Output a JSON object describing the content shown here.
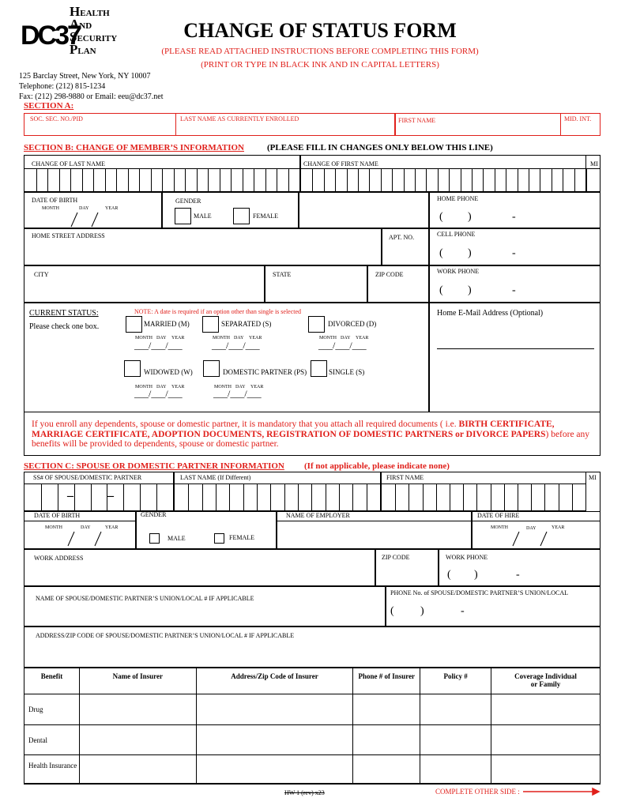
{
  "header": {
    "logo": {
      "lines": [
        "HEALTH",
        "AND",
        "SECURITY",
        "PLAN"
      ],
      "mark": "DC37"
    },
    "address": [
      "125 Barclay Street, New York, NY 10007",
      "Telephone: (212) 815-1234",
      "Fax: (212) 298-9880 or Email: eeu@dc37.net"
    ],
    "title": "CHANGE OF STATUS FORM",
    "instructions": [
      "(PLEASE READ ATTACHED INSTRUCTIONS BEFORE COMPLETING THIS FORM)",
      "(PRINT OR TYPE IN BLACK INK AND IN CAPITAL LETTERS)"
    ]
  },
  "common": {
    "month": "MONTH",
    "day": "DAY",
    "year": "YEAR",
    "phone_open": "(",
    "phone_close": ")",
    "phone_dash": "-",
    "date_blank": "___/___/___",
    "ss_dash": "–"
  },
  "section_a": {
    "title": "SECTION A:",
    "fields": [
      "SOC. SEC. NO./PID",
      "LAST NAME AS CURRENTLY ENROLLED",
      "FIRST NAME",
      "MID. INT."
    ]
  },
  "section_b": {
    "title": "SECTION B: CHANGE OF MEMBER’S INFORMATION",
    "note": "(PLEASE FILL IN CHANGES ONLY BELOW THIS LINE)",
    "last_name": "CHANGE OF LAST NAME",
    "first_name": "CHANGE OF FIRST NAME",
    "mi": "MI",
    "date_of_birth": "DATE OF BIRTH",
    "gender": "GENDER",
    "male": "MALE",
    "female": "FEMALE",
    "home_phone": "HOME PHONE",
    "street": "HOME STREET ADDRESS",
    "apt": "APT. NO.",
    "cell_phone": "CELL PHONE",
    "city": "CITY",
    "state": "STATE",
    "zip": "ZIP CODE",
    "work_phone": "WORK PHONE",
    "current_status": "CURRENT STATUS:",
    "check_one": "Please check one box.",
    "status_note": "NOTE: A date is required if an option other than single is selected",
    "options": [
      "MARRIED (M)",
      "SEPARATED (S)",
      "DIVORCED (D)",
      "WIDOWED (W)",
      "DOMESTIC PARTNER (PS)",
      "SINGLE (S)"
    ],
    "email": "Home E-Mail Address (Optional)",
    "notice": {
      "before": "If you enroll any dependents, spouse or domestic partner, it is mandatory that you attach all required documents ( i.e. ",
      "documents": "BIRTH   CERTIFICATE, MARRIAGE CERTIFICATE, ADOPTION DOCUMENTS, REGISTRATION OF DOMESTIC PARTNERS or DIVORCE PAPERS",
      "after": ")  before any benefits will be provided to dependents, spouse or domestic partner."
    }
  },
  "section_c": {
    "title": "SECTION C: SPOUSE OR DOMESTIC PARTNER INFORMATION",
    "note": "(If not applicable, please indicate none)",
    "ss": "SS# OF SPOUSE/DOMESTIC PARTNER",
    "last_name": "LAST NAME (If Different)",
    "first_name": "FIRST NAME",
    "mi": "MI",
    "date_of_birth": "DATE OF BIRTH",
    "gender": "GENDER",
    "employer": "NAME OF EMPLOYER",
    "date_of_hire": "DATE OF HIRE",
    "male": "MALE",
    "female": "FEMALE",
    "work_address": "WORK ADDRESS",
    "zip": "ZIP CODE",
    "work_phone": "WORK PHONE",
    "union_name": "NAME OF SPOUSE/DOMESTIC PARTNER’S UNION/LOCAL # IF APPLICABLE",
    "union_phone": "PHONE No. of SPOUSE/DOMESTIC PARTNER’S UNION/LOCAL",
    "union_address": "ADDRESS/ZIP CODE OF SPOUSE/DOMESTIC PARTNER’S UNION/LOCAL # IF APPLICABLE",
    "table": {
      "headers": [
        "Benefit",
        "Name of Insurer",
        "Address/Zip Code of Insurer",
        "Phone # of Insurer",
        "Policy #",
        "Coverage Individual or Family"
      ],
      "rows": [
        "Drug",
        "Dental",
        "Health Insurance"
      ]
    }
  },
  "footer": {
    "form_code": "HW 1 (rev) x23",
    "complete_other_side": "COMPLETE OTHER SIDE :"
  }
}
